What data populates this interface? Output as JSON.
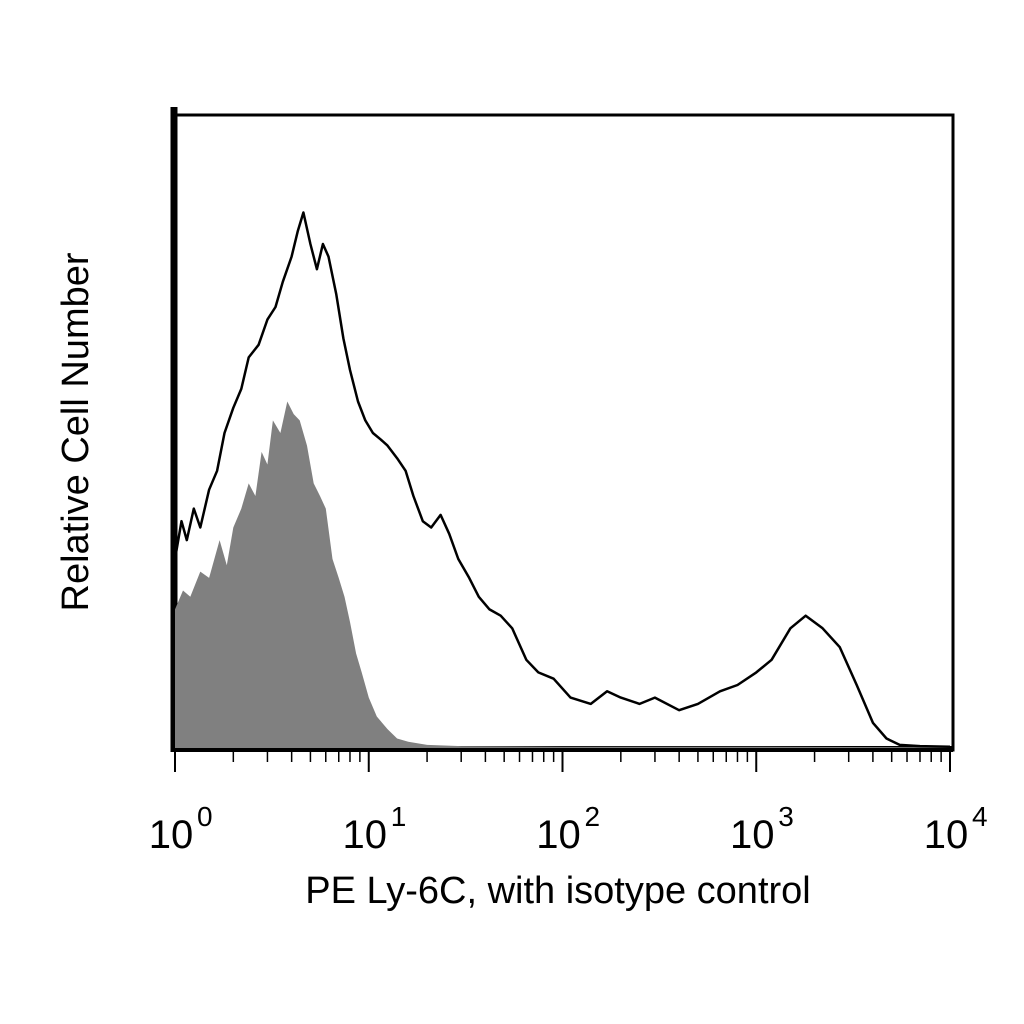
{
  "chart_data": {
    "type": "area",
    "xscale": "log",
    "xlim": [
      1,
      10000
    ],
    "ylim": [
      0,
      100
    ],
    "grid": false,
    "xlabel": "PE Ly-6C, with isotype control",
    "ylabel": "Relative Cell Number",
    "x_ticks": [
      {
        "base": "10",
        "exp": "0"
      },
      {
        "base": "10",
        "exp": "1"
      },
      {
        "base": "10",
        "exp": "2"
      },
      {
        "base": "10",
        "exp": "3"
      },
      {
        "base": "10",
        "exp": "4"
      }
    ],
    "series": [
      {
        "style": "gray-filled",
        "color": "#808080",
        "x": [
          1.0,
          1.1,
          1.2,
          1.35,
          1.5,
          1.7,
          1.85,
          2.0,
          2.2,
          2.4,
          2.6,
          2.8,
          3.0,
          3.2,
          3.5,
          3.8,
          4.1,
          4.4,
          4.8,
          5.2,
          5.6,
          6.0,
          6.5,
          7.0,
          7.5,
          8.0,
          8.6,
          9.2,
          10.0,
          11.0,
          12.5,
          14.0,
          16.0,
          20.0,
          30.0,
          100.0,
          1000.0,
          10000.0
        ],
        "y": [
          22,
          25,
          24,
          28,
          27,
          33,
          29,
          35,
          38,
          42,
          40,
          47,
          45,
          52,
          50,
          55,
          53,
          52,
          48,
          42,
          40,
          38,
          30,
          27,
          24,
          20,
          15,
          12,
          8,
          5,
          3,
          1.5,
          1,
          0.5,
          0.3,
          0.2,
          0.2,
          0.1
        ]
      },
      {
        "style": "black-outline",
        "color": "#000000",
        "x": [
          1.0,
          1.08,
          1.15,
          1.25,
          1.35,
          1.5,
          1.65,
          1.8,
          2.0,
          2.2,
          2.4,
          2.7,
          3.0,
          3.3,
          3.6,
          4.0,
          4.3,
          4.6,
          5.0,
          5.4,
          5.8,
          6.2,
          6.8,
          7.4,
          8.0,
          8.8,
          9.6,
          10.5,
          11.5,
          12.5,
          14.0,
          15.5,
          17.0,
          19.0,
          21.0,
          23.5,
          26.0,
          29.0,
          33.0,
          37.0,
          42.0,
          48.0,
          55.0,
          65.0,
          75.0,
          90.0,
          110.0,
          140.0,
          170.0,
          200.0,
          250.0,
          300.0,
          400.0,
          500.0,
          650.0,
          800.0,
          1000.0,
          1200.0,
          1500.0,
          1800.0,
          2200.0,
          2700.0,
          3300.0,
          4000.0,
          4700.0,
          5500.0,
          7000.0,
          10000.0
        ],
        "y": [
          30,
          36,
          33,
          38,
          35,
          41,
          44,
          50,
          54,
          57,
          62,
          64,
          68,
          70,
          74,
          78,
          82,
          85,
          80,
          76,
          80,
          78,
          72,
          65,
          60,
          55,
          52,
          50,
          49,
          48,
          46,
          44,
          40,
          36,
          35,
          37,
          34,
          30,
          27,
          24,
          22,
          21,
          19,
          14,
          12,
          11,
          8,
          7,
          9,
          8,
          7,
          8,
          6,
          7,
          9,
          10,
          12,
          14,
          19,
          21,
          19,
          16,
          10,
          4,
          1.5,
          0.5,
          0.3,
          0.2
        ]
      }
    ]
  }
}
